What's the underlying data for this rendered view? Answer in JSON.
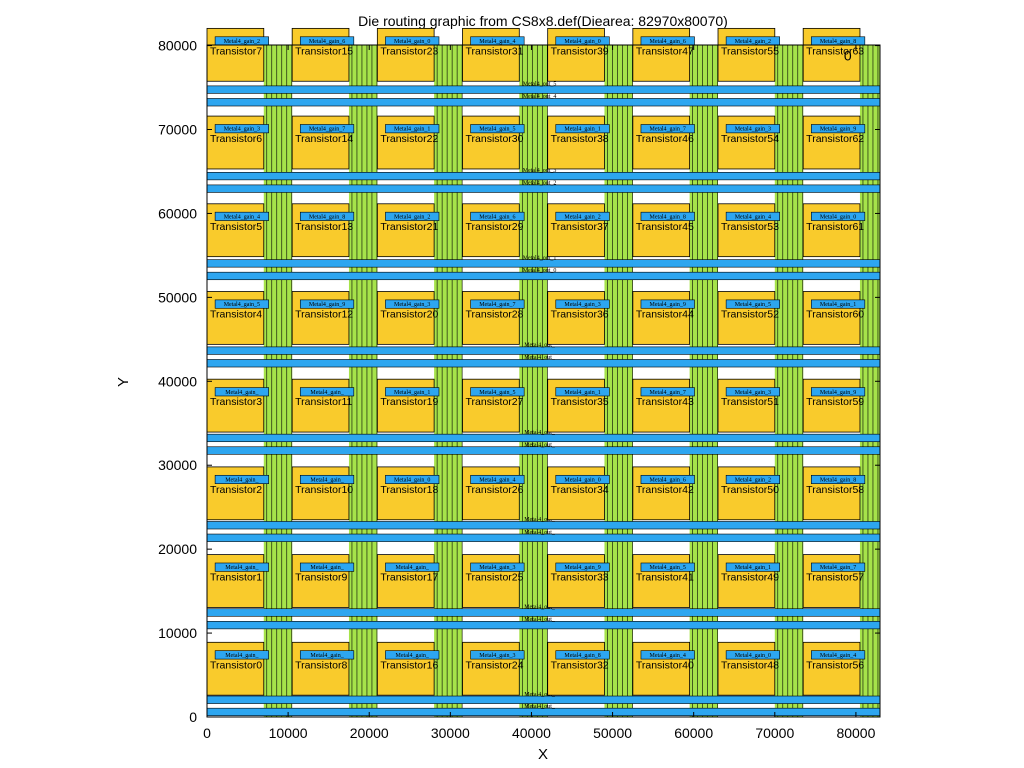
{
  "chart_data": {
    "type": "layout",
    "title": "Die routing graphic from CS8x8.def(Diearea: 82970x80070)",
    "xlabel": "X",
    "ylabel": "Y",
    "xlim": [
      0,
      82970
    ],
    "ylim": [
      0,
      80070
    ],
    "xticks": [
      0,
      10000,
      20000,
      30000,
      40000,
      50000,
      60000,
      70000,
      80000
    ],
    "yticks": [
      0,
      10000,
      20000,
      30000,
      40000,
      50000,
      60000,
      70000,
      80000
    ],
    "corner_marker": "0",
    "colors": {
      "cell_fill": "#f9cb2c",
      "wire_fill": "#2da6f0",
      "via_fill": "#a6e34a",
      "outline": "#000000"
    },
    "cell_columns_x": [
      0,
      10500,
      21000,
      31500,
      42000,
      52500,
      63000,
      73500
    ],
    "cell_rows_y": [
      2600,
      13050,
      23500,
      33950,
      44400,
      54850,
      65300,
      75750
    ],
    "cell_size": [
      7000,
      6300
    ],
    "transistors": [
      [
        "Transistor0",
        "Transistor8",
        "Transistor16",
        "Transistor24",
        "Transistor32",
        "Transistor40",
        "Transistor48",
        "Transistor56"
      ],
      [
        "Transistor1",
        "Transistor9",
        "Transistor17",
        "Transistor25",
        "Transistor33",
        "Transistor41",
        "Transistor49",
        "Transistor57"
      ],
      [
        "Transistor2",
        "Transistor10",
        "Transistor18",
        "Transistor26",
        "Transistor34",
        "Transistor42",
        "Transistor50",
        "Transistor58"
      ],
      [
        "Transistor3",
        "Transistor11",
        "Transistor19",
        "Transistor27",
        "Transistor35",
        "Transistor43",
        "Transistor51",
        "Transistor59"
      ],
      [
        "Transistor4",
        "Transistor12",
        "Transistor20",
        "Transistor28",
        "Transistor36",
        "Transistor44",
        "Transistor52",
        "Transistor60"
      ],
      [
        "Transistor5",
        "Transistor13",
        "Transistor21",
        "Transistor29",
        "Transistor37",
        "Transistor45",
        "Transistor53",
        "Transistor61"
      ],
      [
        "Transistor6",
        "Transistor14",
        "Transistor22",
        "Transistor30",
        "Transistor38",
        "Transistor46",
        "Transistor54",
        "Transistor62"
      ],
      [
        "Transistor7",
        "Transistor15",
        "Transistor23",
        "Transistor31",
        "Transistor39",
        "Transistor47",
        "Transistor55",
        "Transistor63"
      ]
    ],
    "gate_wires": [
      [
        "Metal4_gain_",
        "Metal4_gain_",
        "Metal4_gain_",
        "Metal4_gain_3",
        "Metal4_gain_8",
        "Metal4_gain_4",
        "Metal4_gain_0",
        "Metal4_gain_4"
      ],
      [
        "Metal4_gain_",
        "Metal4_gain_",
        "Metal4_gain_",
        "Metal4_gain_3",
        "Metal4_gain_9",
        "Metal4_gain_5",
        "Metal4_gain_1",
        "Metal4_gain_7"
      ],
      [
        "Metal4_gain_",
        "Metal4_gain_",
        "Metal4_gain_0",
        "Metal4_gain_4",
        "Metal4_gain_0",
        "Metal4_gain_6",
        "Metal4_gain_2",
        "Metal4_gain_8"
      ],
      [
        "Metal4_gain_",
        "Metal4_gain_",
        "Metal4_gain_1",
        "Metal4_gain_5",
        "Metal4_gain_1",
        "Metal4_gain_7",
        "Metal4_gain_3",
        "Metal4_gain_9"
      ],
      [
        "Metal4_gain_5",
        "Metal4_gain_9",
        "Metal4_gain_3",
        "Metal4_gain_7",
        "Metal4_gain_3",
        "Metal4_gain_9",
        "Metal4_gain_5",
        "Metal4_gain_1"
      ],
      [
        "Metal4_gain_4",
        "Metal4_gain_8",
        "Metal4_gain_2",
        "Metal4_gain_6",
        "Metal4_gain_2",
        "Metal4_gain_8",
        "Metal4_gain_4",
        "Metal4_gain_0"
      ],
      [
        "Metal4_gain_3",
        "Metal4_gain_7",
        "Metal4_gain_1",
        "Metal4_gain_5",
        "Metal4_gain_1",
        "Metal4_gain_7",
        "Metal4_gain_3",
        "Metal4_gain_9"
      ],
      [
        "Metal4_gain_2",
        "Metal4_gain_6",
        "Metal4_gain_0",
        "Metal4_gain_4",
        "Metal4_gain_0",
        "Metal4_gain_6",
        "Metal4_gain_2",
        "Metal4_gain_8"
      ]
    ],
    "horizontal_wires": [
      {
        "y": 150,
        "label": "Metal4_out_"
      },
      {
        "y": 1600,
        "label": "Metal4_out_"
      },
      {
        "y": 10500,
        "label": "Metal4_out_"
      },
      {
        "y": 12000,
        "label": "Metal4_out_"
      },
      {
        "y": 20900,
        "label": "Metal4_out_"
      },
      {
        "y": 22400,
        "label": "Metal4_out_"
      },
      {
        "y": 31300,
        "label": "Metal4_out_"
      },
      {
        "y": 32800,
        "label": "Metal4_out_"
      },
      {
        "y": 41700,
        "label": "Metal4_out_"
      },
      {
        "y": 43200,
        "label": "Metal4_out_"
      },
      {
        "y": 52100,
        "label": "Metal4_out_0"
      },
      {
        "y": 53600,
        "label": "Metal4_out_1"
      },
      {
        "y": 62500,
        "label": "Metal4_out_2"
      },
      {
        "y": 64000,
        "label": "Metal4_out_3"
      },
      {
        "y": 72800,
        "label": "Metal4_out_4"
      },
      {
        "y": 74300,
        "label": "Metal4_out_5"
      }
    ],
    "wire_height": 900
  }
}
